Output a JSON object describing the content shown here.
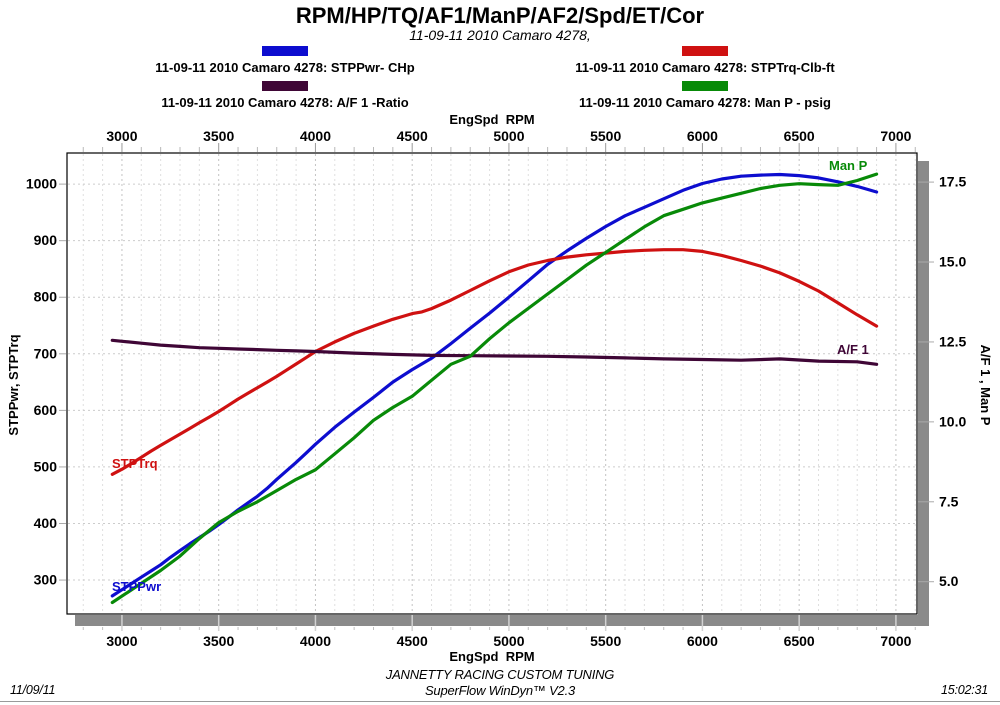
{
  "title": "RPM/HP/TQ/AF1/ManP/AF2/Spd/ET/Cor",
  "subtitle": "11-09-11 2010 Camaro 4278,",
  "legend": {
    "items": [
      {
        "label": "11-09-11 2010 Camaro 4278: STPPwr- CHp",
        "color": "#0d0dcf"
      },
      {
        "label": "11-09-11 2010 Camaro 4278: STPTrq-Clb-ft",
        "color": "#cf1111"
      },
      {
        "label": "11-09-11 2010 Camaro 4278: A/F 1 -Ratio",
        "color": "#3f0636"
      },
      {
        "label": "11-09-11 2010 Camaro 4278: Man P - psig",
        "color": "#088a08"
      }
    ]
  },
  "chart_data": {
    "type": "line",
    "title": "RPM/HP/TQ/AF1/ManP/AF2/Spd/ET/Cor",
    "grid": "on",
    "x_axis": {
      "label": "EngSpd  RPM",
      "ticks": [
        3000,
        3500,
        4000,
        4500,
        5000,
        5500,
        6000,
        6500,
        7000
      ],
      "minor_step": 100,
      "range": [
        2716,
        7109
      ]
    },
    "y_left": {
      "label": "STPPwr, STPTrq",
      "ticks": [
        300,
        400,
        500,
        600,
        700,
        800,
        900,
        1000
      ],
      "range": [
        240,
        1055
      ]
    },
    "y_right": {
      "label": "A/F 1 , Man P",
      "ticks": [
        "5.0",
        "7.5",
        "10.0",
        "12.5",
        "15.0",
        "17.5"
      ],
      "range": [
        3.99,
        18.41
      ]
    },
    "series": [
      {
        "name": "STPPwr - CHp",
        "curve_label": "STPPwr",
        "axis": "left",
        "color": "#0d0dcf",
        "points": [
          [
            2950,
            272
          ],
          [
            3000,
            283
          ],
          [
            3050,
            294
          ],
          [
            3100,
            305
          ],
          [
            3150,
            316
          ],
          [
            3200,
            327
          ],
          [
            3250,
            340
          ],
          [
            3300,
            352
          ],
          [
            3350,
            364
          ],
          [
            3400,
            375
          ],
          [
            3450,
            386
          ],
          [
            3500,
            398
          ],
          [
            3550,
            411
          ],
          [
            3600,
            424
          ],
          [
            3650,
            436
          ],
          [
            3700,
            448
          ],
          [
            3750,
            462
          ],
          [
            3800,
            478
          ],
          [
            3850,
            493
          ],
          [
            3900,
            508
          ],
          [
            3950,
            524
          ],
          [
            4000,
            540
          ],
          [
            4100,
            570
          ],
          [
            4200,
            597
          ],
          [
            4300,
            623
          ],
          [
            4400,
            650
          ],
          [
            4500,
            672
          ],
          [
            4600,
            692
          ],
          [
            4700,
            718
          ],
          [
            4800,
            745
          ],
          [
            4900,
            772
          ],
          [
            5000,
            800
          ],
          [
            5100,
            829
          ],
          [
            5200,
            858
          ],
          [
            5300,
            882
          ],
          [
            5400,
            904
          ],
          [
            5500,
            925
          ],
          [
            5600,
            944
          ],
          [
            5700,
            959
          ],
          [
            5800,
            974
          ],
          [
            5900,
            989
          ],
          [
            6000,
            1001
          ],
          [
            6100,
            1009
          ],
          [
            6200,
            1014
          ],
          [
            6300,
            1016
          ],
          [
            6400,
            1017
          ],
          [
            6500,
            1015
          ],
          [
            6600,
            1011
          ],
          [
            6700,
            1004
          ],
          [
            6800,
            996
          ],
          [
            6900,
            986
          ]
        ]
      },
      {
        "name": "STPTrq - Clb-ft",
        "curve_label": "STPTrq",
        "axis": "left",
        "color": "#cf1111",
        "points": [
          [
            2950,
            487
          ],
          [
            3000,
            496
          ],
          [
            3050,
            506
          ],
          [
            3100,
            517
          ],
          [
            3150,
            528
          ],
          [
            3200,
            538
          ],
          [
            3250,
            548
          ],
          [
            3300,
            558
          ],
          [
            3350,
            568
          ],
          [
            3400,
            578
          ],
          [
            3450,
            588
          ],
          [
            3500,
            598
          ],
          [
            3550,
            609
          ],
          [
            3600,
            620
          ],
          [
            3650,
            630
          ],
          [
            3700,
            640
          ],
          [
            3750,
            650
          ],
          [
            3800,
            660
          ],
          [
            3850,
            671
          ],
          [
            3900,
            682
          ],
          [
            3950,
            693
          ],
          [
            4000,
            704
          ],
          [
            4100,
            721
          ],
          [
            4200,
            736
          ],
          [
            4300,
            749
          ],
          [
            4400,
            761
          ],
          [
            4450,
            766
          ],
          [
            4500,
            771
          ],
          [
            4550,
            774
          ],
          [
            4600,
            780
          ],
          [
            4700,
            795
          ],
          [
            4800,
            812
          ],
          [
            4900,
            829
          ],
          [
            5000,
            845
          ],
          [
            5100,
            857
          ],
          [
            5200,
            865
          ],
          [
            5300,
            871
          ],
          [
            5400,
            875
          ],
          [
            5500,
            878
          ],
          [
            5600,
            881
          ],
          [
            5700,
            883
          ],
          [
            5800,
            884
          ],
          [
            5900,
            884
          ],
          [
            6000,
            881
          ],
          [
            6100,
            874
          ],
          [
            6200,
            865
          ],
          [
            6300,
            855
          ],
          [
            6400,
            843
          ],
          [
            6500,
            828
          ],
          [
            6600,
            811
          ],
          [
            6700,
            790
          ],
          [
            6800,
            769
          ],
          [
            6900,
            749
          ]
        ]
      },
      {
        "name": "A/F 1 - Ratio",
        "curve_label": "A/F 1",
        "axis": "right",
        "color": "#3f0636",
        "points": [
          [
            2950,
            12.55
          ],
          [
            3000,
            12.52
          ],
          [
            3100,
            12.46
          ],
          [
            3200,
            12.4
          ],
          [
            3300,
            12.36
          ],
          [
            3400,
            12.32
          ],
          [
            3500,
            12.3
          ],
          [
            3600,
            12.28
          ],
          [
            3700,
            12.26
          ],
          [
            3800,
            12.24
          ],
          [
            3900,
            12.22
          ],
          [
            4000,
            12.2
          ],
          [
            4200,
            12.15
          ],
          [
            4400,
            12.11
          ],
          [
            4600,
            12.08
          ],
          [
            4800,
            12.07
          ],
          [
            5000,
            12.06
          ],
          [
            5200,
            12.05
          ],
          [
            5400,
            12.03
          ],
          [
            5600,
            12.0
          ],
          [
            5800,
            11.97
          ],
          [
            6000,
            11.95
          ],
          [
            6200,
            11.93
          ],
          [
            6400,
            11.97
          ],
          [
            6600,
            11.9
          ],
          [
            6800,
            11.88
          ],
          [
            6900,
            11.8
          ]
        ]
      },
      {
        "name": "Man P - psig",
        "curve_label": "Man P",
        "axis": "right",
        "color": "#088a08",
        "points": [
          [
            2950,
            4.35
          ],
          [
            3000,
            4.55
          ],
          [
            3100,
            4.95
          ],
          [
            3200,
            5.35
          ],
          [
            3300,
            5.8
          ],
          [
            3400,
            6.35
          ],
          [
            3500,
            6.85
          ],
          [
            3600,
            7.2
          ],
          [
            3700,
            7.5
          ],
          [
            3800,
            7.85
          ],
          [
            3900,
            8.2
          ],
          [
            4000,
            8.5
          ],
          [
            4100,
            9.0
          ],
          [
            4200,
            9.5
          ],
          [
            4300,
            10.05
          ],
          [
            4400,
            10.45
          ],
          [
            4500,
            10.8
          ],
          [
            4600,
            11.3
          ],
          [
            4700,
            11.8
          ],
          [
            4800,
            12.05
          ],
          [
            4900,
            12.6
          ],
          [
            5000,
            13.1
          ],
          [
            5100,
            13.55
          ],
          [
            5200,
            14.0
          ],
          [
            5300,
            14.45
          ],
          [
            5400,
            14.9
          ],
          [
            5500,
            15.3
          ],
          [
            5600,
            15.7
          ],
          [
            5700,
            16.1
          ],
          [
            5800,
            16.45
          ],
          [
            5900,
            16.65
          ],
          [
            6000,
            16.85
          ],
          [
            6100,
            17.0
          ],
          [
            6200,
            17.15
          ],
          [
            6300,
            17.3
          ],
          [
            6400,
            17.4
          ],
          [
            6500,
            17.45
          ],
          [
            6600,
            17.42
          ],
          [
            6700,
            17.4
          ],
          [
            6800,
            17.55
          ],
          [
            6900,
            17.75
          ]
        ]
      }
    ]
  },
  "footer": {
    "date": "11/09/11",
    "line1": "JANNETTY RACING CUSTOM TUNING",
    "line2": "SuperFlow WinDyn™ V2.3",
    "time": "15:02:31"
  }
}
